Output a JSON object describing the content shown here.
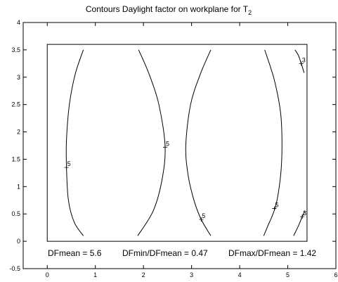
{
  "chart_data": {
    "type": "contour",
    "title": "Contours Daylight factor on workplane  for T",
    "title_subscript": "2",
    "xlim": [
      -0.5,
      6
    ],
    "ylim": [
      -0.5,
      4
    ],
    "x_ticks": [
      "0",
      "1",
      "2",
      "3",
      "4",
      "5",
      "6"
    ],
    "y_ticks": [
      "-0.5",
      "0",
      "0.5",
      "1",
      "1.5",
      "2",
      "2.5",
      "3",
      "3.5",
      "4"
    ],
    "grid": false,
    "room_outline": [
      [
        0,
        0
      ],
      [
        5.4,
        0
      ],
      [
        5.4,
        3.6
      ],
      [
        0,
        3.6
      ]
    ],
    "contours": [
      {
        "level": 5,
        "label": "5",
        "label_at": [
          0.4,
          1.35
        ],
        "points": [
          [
            0.75,
            3.5
          ],
          [
            0.58,
            3.05
          ],
          [
            0.46,
            2.5
          ],
          [
            0.4,
            1.85
          ],
          [
            0.4,
            1.35
          ],
          [
            0.44,
            0.75
          ],
          [
            0.56,
            0.35
          ],
          [
            0.75,
            0.1
          ]
        ]
      },
      {
        "level": 5,
        "label": "5",
        "label_at": [
          2.45,
          1.72
        ],
        "points": [
          [
            1.9,
            3.5
          ],
          [
            2.12,
            3.05
          ],
          [
            2.32,
            2.5
          ],
          [
            2.45,
            1.72
          ],
          [
            2.38,
            1.1
          ],
          [
            2.2,
            0.55
          ],
          [
            1.88,
            0.1
          ]
        ]
      },
      {
        "level": 5,
        "label": "5",
        "label_at": [
          3.2,
          0.4
        ],
        "points": [
          [
            3.4,
            3.5
          ],
          [
            3.18,
            3.05
          ],
          [
            2.98,
            2.5
          ],
          [
            2.88,
            1.75
          ],
          [
            2.93,
            1.2
          ],
          [
            3.05,
            0.75
          ],
          [
            3.2,
            0.4
          ],
          [
            3.4,
            0.1
          ]
        ]
      },
      {
        "level": 5,
        "label": "5",
        "label_at": [
          4.72,
          0.6
        ],
        "points": [
          [
            4.52,
            3.5
          ],
          [
            4.72,
            2.95
          ],
          [
            4.85,
            2.35
          ],
          [
            4.88,
            1.75
          ],
          [
            4.85,
            1.2
          ],
          [
            4.75,
            0.65
          ],
          [
            4.57,
            0.25
          ],
          [
            4.5,
            0.1
          ]
        ]
      },
      {
        "level": 3,
        "label": "3",
        "label_at": [
          5.28,
          3.25
        ],
        "points": [
          [
            5.15,
            3.5
          ],
          [
            5.22,
            3.4
          ],
          [
            5.28,
            3.25
          ],
          [
            5.34,
            3.08
          ]
        ]
      },
      {
        "level": 3,
        "label": "3",
        "label_at": [
          5.3,
          0.45
        ],
        "points": [
          [
            5.12,
            0.1
          ],
          [
            5.22,
            0.28
          ],
          [
            5.3,
            0.45
          ],
          [
            5.35,
            0.55
          ]
        ]
      }
    ],
    "annotations": {
      "dfmean": "DFmean =  5.6",
      "dfmin_ratio": "DFmin/DFmean = 0.47",
      "dfmax_ratio": "DFmax/DFmean =  1.42"
    }
  }
}
